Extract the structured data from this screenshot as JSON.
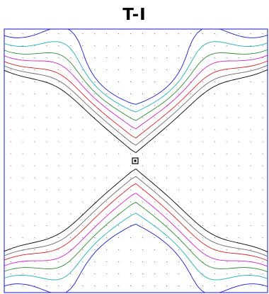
{
  "chart_data": {
    "type": "contour",
    "title": "T-I",
    "grid_size": [
      22,
      22
    ],
    "center_marker": "square",
    "contour_colors": [
      "#000000",
      "#6a6a6a",
      "#d62020",
      "#cc22cc",
      "#2e8b2e",
      "#20b0b0",
      "#1a1ac8"
    ]
  }
}
